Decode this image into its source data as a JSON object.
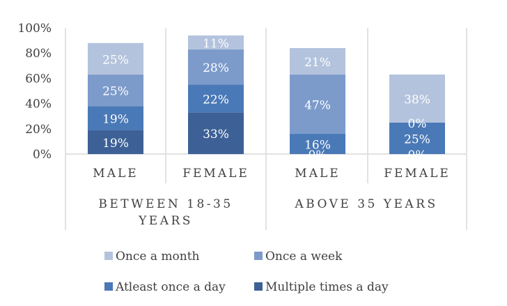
{
  "chart_data": {
    "type": "bar",
    "stacked": true,
    "orientation": "vertical",
    "groups": [
      {
        "label": "BETWEEN 18-35 YEARS",
        "categories": [
          "MALE",
          "FEMALE"
        ]
      },
      {
        "label": "ABOVE 35 YEARS",
        "categories": [
          "MALE",
          "FEMALE"
        ]
      }
    ],
    "categories": [
      "MALE",
      "FEMALE",
      "MALE",
      "FEMALE"
    ],
    "series": [
      {
        "name": "Multiple times a day",
        "color": "#3d6196",
        "values": [
          19,
          33,
          0,
          0
        ],
        "labels": [
          "19%",
          "33%",
          "0%",
          "0%"
        ]
      },
      {
        "name": "Atleast once a day",
        "color": "#4a79b7",
        "values": [
          19,
          22,
          16,
          25
        ],
        "labels": [
          "19%",
          "22%",
          "16%",
          "25%"
        ]
      },
      {
        "name": "Once a week",
        "color": "#7c9bcb",
        "values": [
          25,
          28,
          47,
          0
        ],
        "labels": [
          "25%",
          "28%",
          "47%",
          "0%"
        ]
      },
      {
        "name": "Once a month",
        "color": "#b4c3dd",
        "values": [
          25,
          11,
          21,
          38
        ],
        "labels": [
          "25%",
          "11%",
          "21%",
          "38%"
        ]
      }
    ],
    "yticks": [
      "0%",
      "20%",
      "40%",
      "60%",
      "80%",
      "100%"
    ],
    "ylim": [
      0,
      100
    ],
    "legend_order": [
      "Once a month",
      "Once a week",
      "Atleast once a day",
      "Multiple times a day"
    ],
    "legend_position": "bottom",
    "grid": true
  }
}
